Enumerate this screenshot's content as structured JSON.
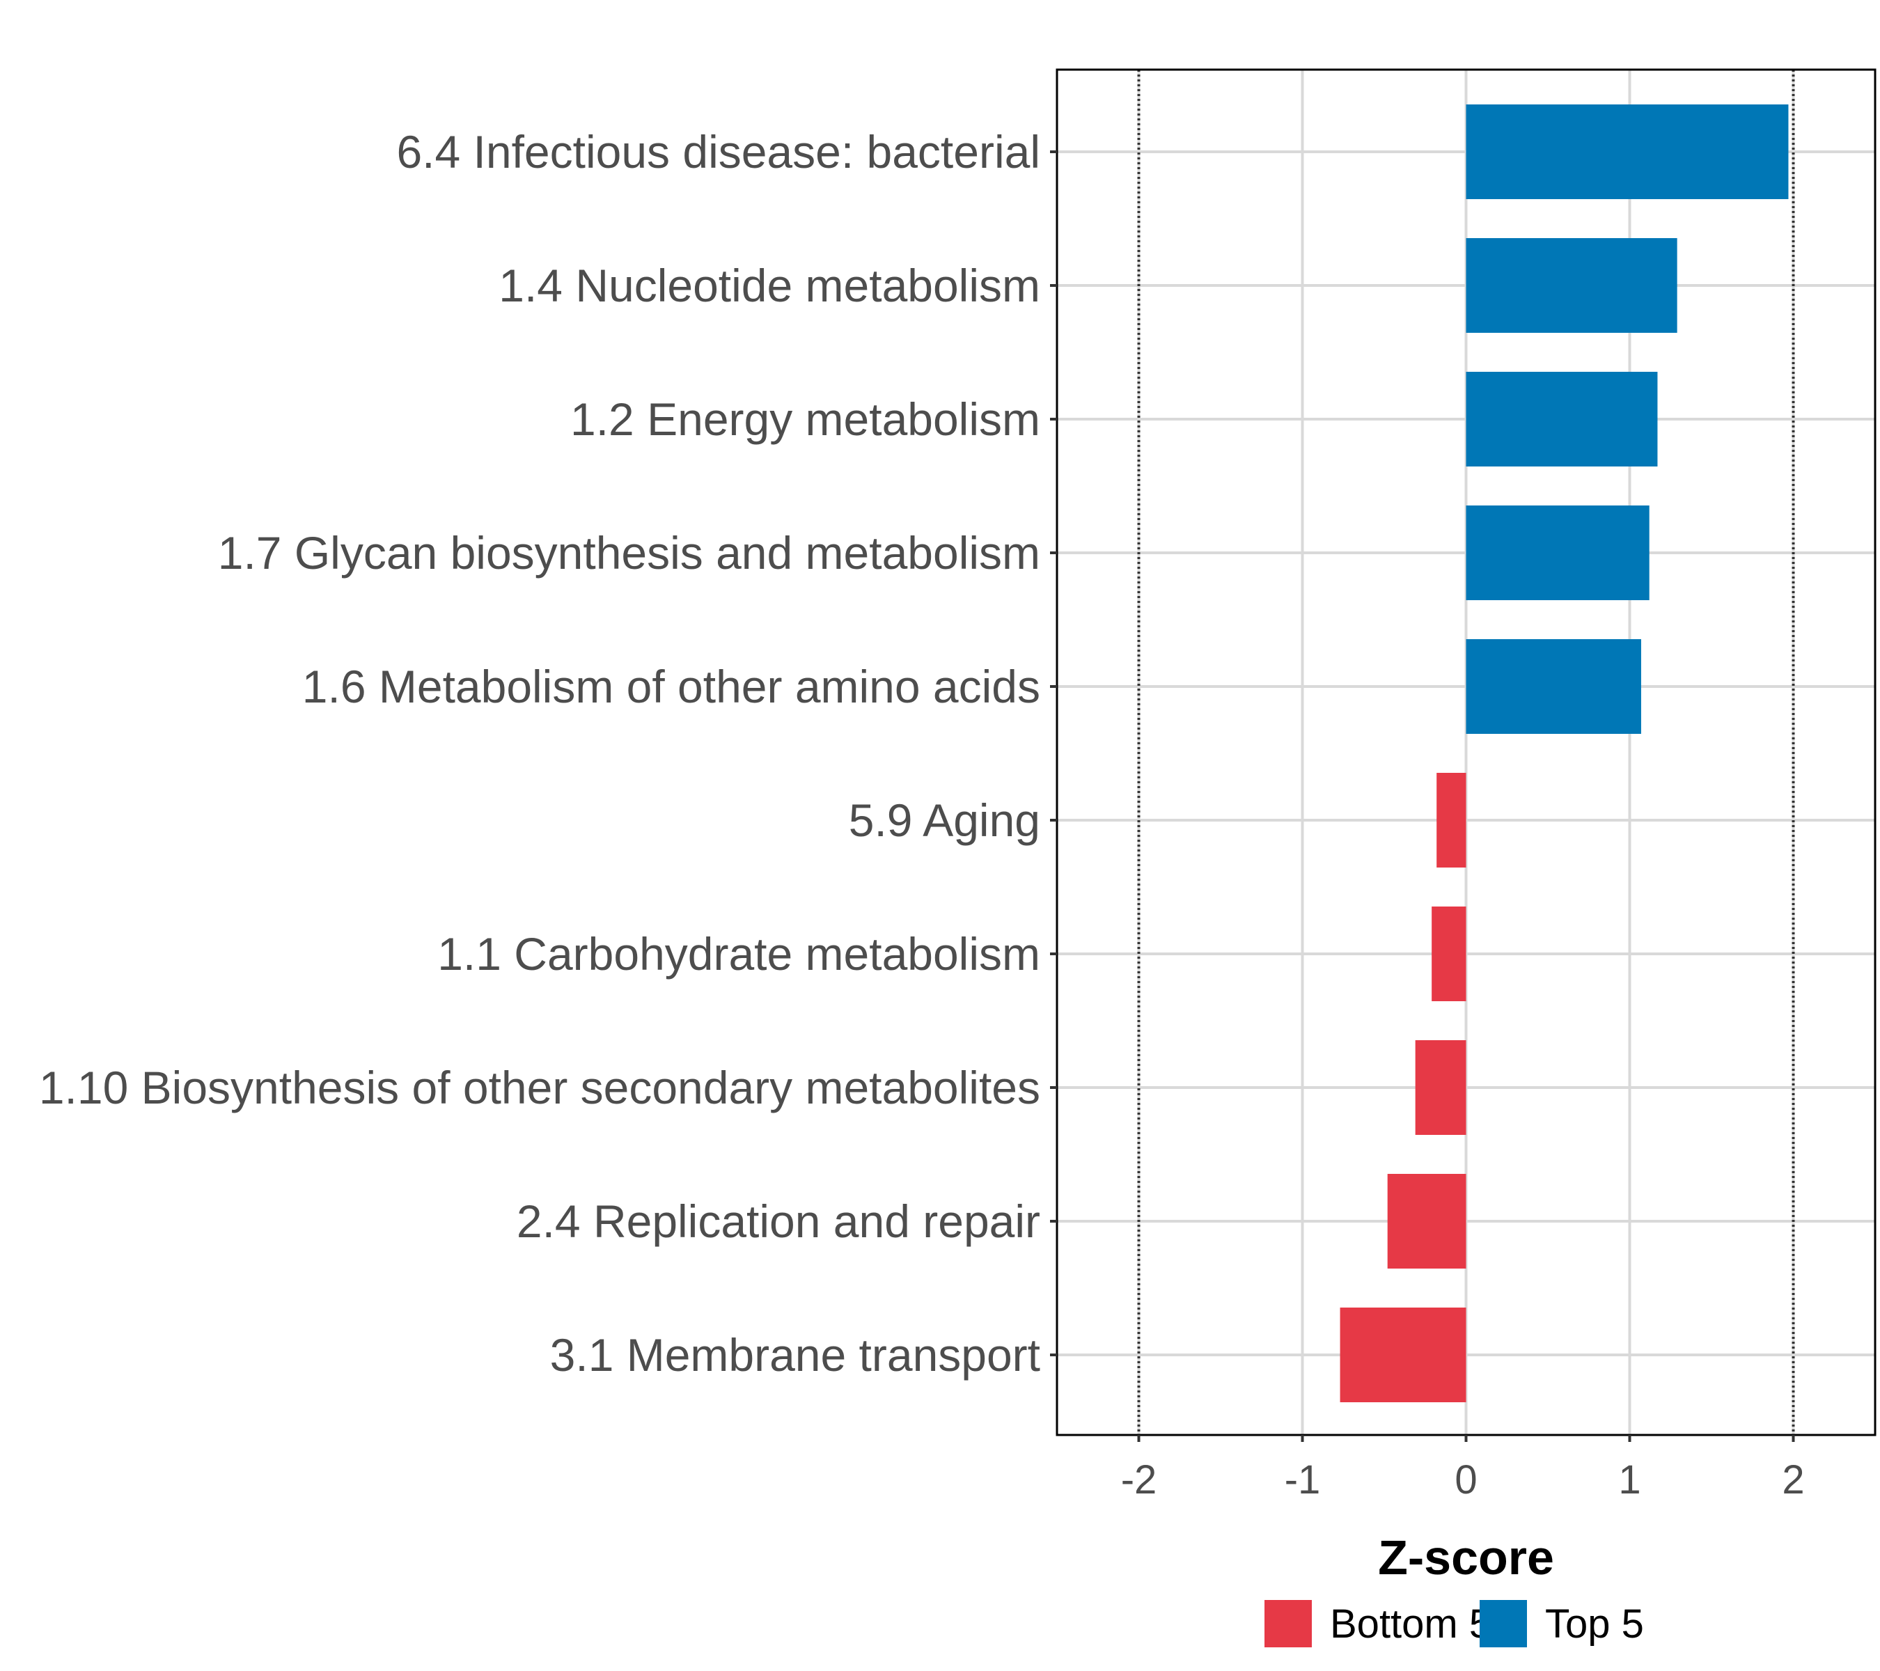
{
  "chart_data": {
    "type": "bar",
    "orientation": "horizontal",
    "categories": [
      "6.4 Infectious disease: bacterial",
      "1.4 Nucleotide metabolism",
      "1.2 Energy metabolism",
      "1.7 Glycan biosynthesis and metabolism",
      "1.6 Metabolism of other amino acids",
      "5.9 Aging",
      "1.1 Carbohydrate metabolism",
      "1.10 Biosynthesis of other secondary metabolites",
      "2.4 Replication and repair",
      "3.1 Membrane transport"
    ],
    "values": [
      1.97,
      1.29,
      1.17,
      1.12,
      1.07,
      -0.18,
      -0.21,
      -0.31,
      -0.48,
      -0.77
    ],
    "groups": [
      "Top 5",
      "Top 5",
      "Top 5",
      "Top 5",
      "Top 5",
      "Bottom 5",
      "Bottom 5",
      "Bottom 5",
      "Bottom 5",
      "Bottom 5"
    ],
    "title": "",
    "xlabel": "Z-score",
    "ylabel": "",
    "xlim": [
      -2.5,
      2.5
    ],
    "xticks": [
      -2,
      -1,
      0,
      1,
      2
    ],
    "tick_labels": [
      "-2",
      "-1",
      "0",
      "1",
      "2"
    ],
    "reference_lines": [
      -2,
      2
    ],
    "grid": true,
    "legend": {
      "position": "bottom",
      "entries": [
        {
          "label": "Bottom 5",
          "color": "#e63946"
        },
        {
          "label": "Top 5",
          "color": "#0077b6"
        }
      ]
    },
    "colors": {
      "Bottom 5": "#e63946",
      "Top 5": "#0077b6"
    }
  }
}
